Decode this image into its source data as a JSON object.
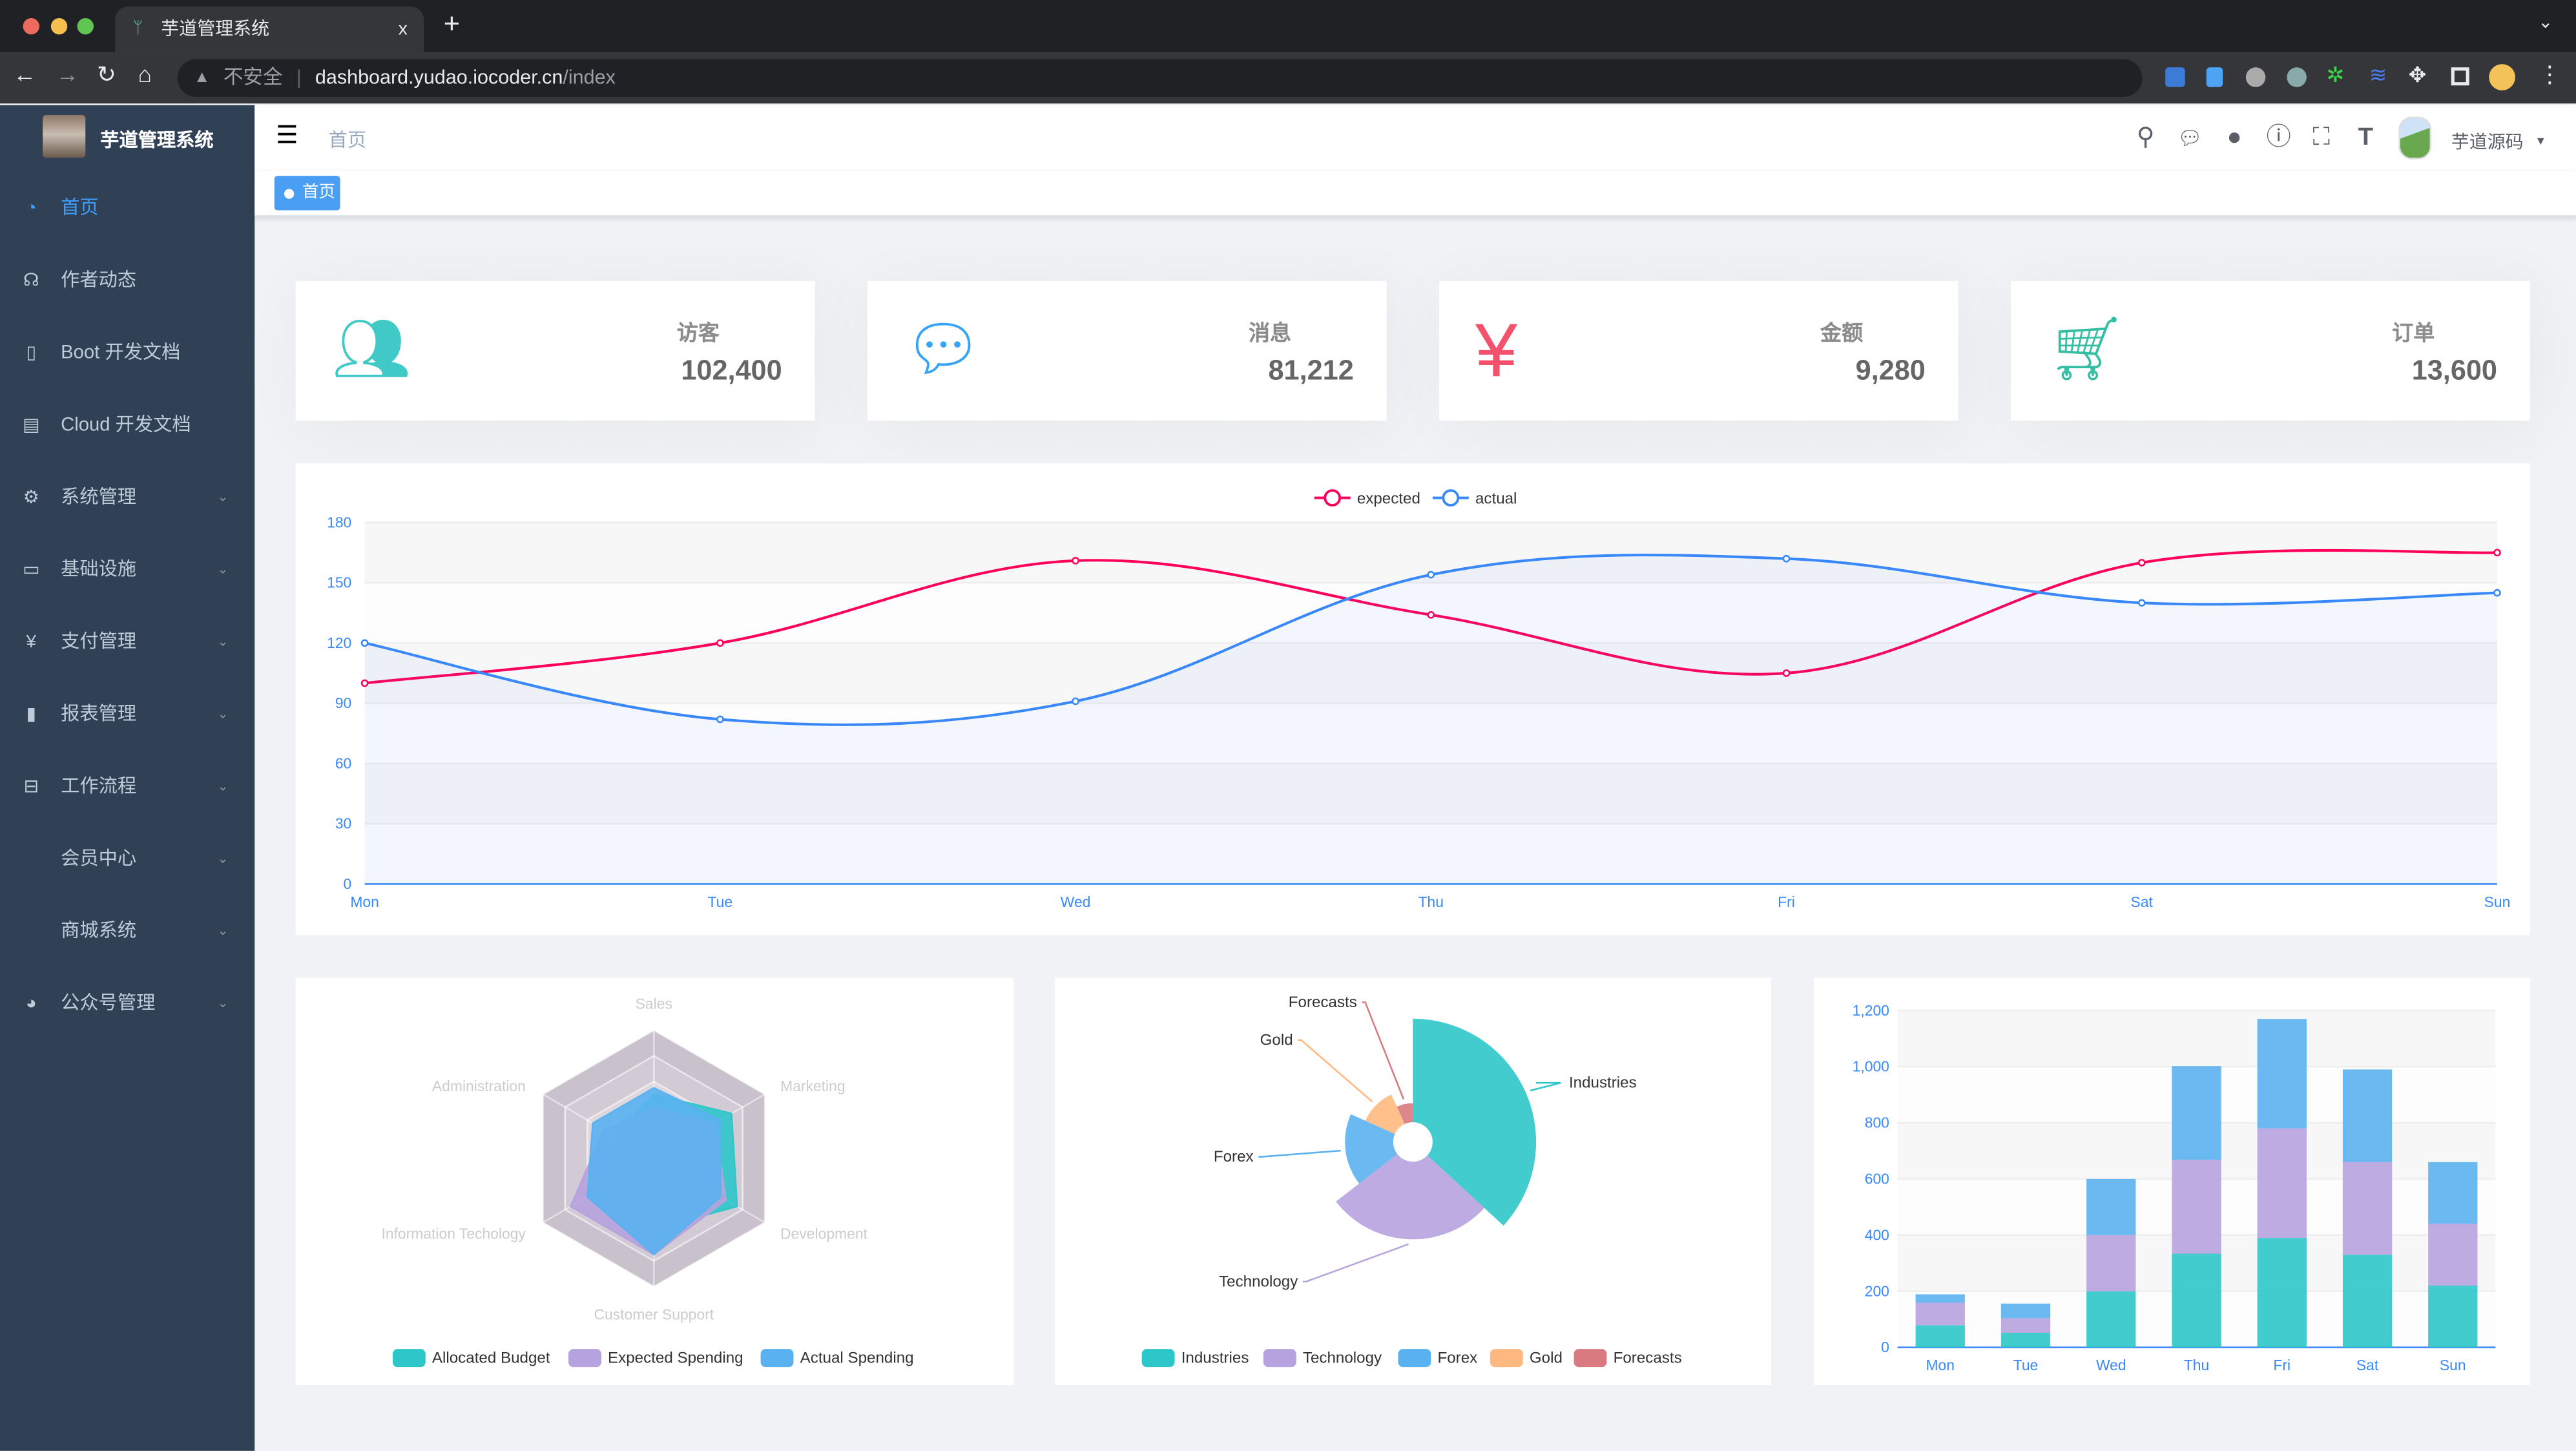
{
  "browser": {
    "tab_title": "芋道管理系统",
    "close": "x",
    "new_tab": "+",
    "security": "不安全",
    "url_host": "dashboard.yudao.iocoder.cn",
    "url_path": "/index"
  },
  "sidebar": {
    "logo_title": "芋道管理系统",
    "items": [
      {
        "label": "首页",
        "icon": "dashboard-icon",
        "active": true,
        "expand": false
      },
      {
        "label": "作者动态",
        "icon": "headset-icon",
        "expand": false
      },
      {
        "label": "Boot 开发文档",
        "icon": "book-icon",
        "expand": false
      },
      {
        "label": "Cloud 开发文档",
        "icon": "document-icon",
        "expand": false
      },
      {
        "label": "系统管理",
        "icon": "gear-icon",
        "expand": true
      },
      {
        "label": "基础设施",
        "icon": "monitor-icon",
        "expand": true
      },
      {
        "label": "支付管理",
        "icon": "yuan-icon",
        "expand": true
      },
      {
        "label": "报表管理",
        "icon": "bar-chart-icon",
        "expand": true
      },
      {
        "label": "工作流程",
        "icon": "toolbox-icon",
        "expand": true
      },
      {
        "label": "会员中心",
        "icon": "",
        "expand": true
      },
      {
        "label": "商城系统",
        "icon": "",
        "expand": true
      },
      {
        "label": "公众号管理",
        "icon": "wechat-icon",
        "expand": true
      }
    ]
  },
  "navbar": {
    "breadcrumb": "首页",
    "user": "芋道源码"
  },
  "tags": {
    "active": "首页"
  },
  "cards": [
    {
      "label": "访客",
      "value": "102,400",
      "icon": "people-icon",
      "color": "#40c9c6"
    },
    {
      "label": "消息",
      "value": "81,212",
      "icon": "message-icon",
      "color": "#36a3f7"
    },
    {
      "label": "金额",
      "value": "9,280",
      "icon": "money-icon",
      "color": "#f4516c"
    },
    {
      "label": "订单",
      "value": "13,600",
      "icon": "shopping-cart-icon",
      "color": "#34bfa3"
    }
  ],
  "chart_data": [
    {
      "type": "line",
      "categories": [
        "Mon",
        "Tue",
        "Wed",
        "Thu",
        "Fri",
        "Sat",
        "Sun"
      ],
      "ylim": [
        0,
        180
      ],
      "yticks": [
        "0",
        "30",
        "60",
        "90",
        "120",
        "150",
        "180"
      ],
      "legend": "top-center",
      "smooth": true,
      "series": [
        {
          "name": "expected",
          "color": "#FF005A",
          "values": [
            100,
            120,
            161,
            134,
            105,
            160,
            165
          ]
        },
        {
          "name": "actual",
          "color": "#3888fa",
          "values": [
            120,
            82,
            91,
            154,
            162,
            140,
            145
          ],
          "area": true
        }
      ]
    },
    {
      "type": "radar",
      "legend": "bottom",
      "indicators": [
        {
          "name": "Sales",
          "max": 10000
        },
        {
          "name": "Administration",
          "max": 20000
        },
        {
          "name": "Information Techology",
          "max": 20000
        },
        {
          "name": "Customer Support",
          "max": 20000
        },
        {
          "name": "Development",
          "max": 20000
        },
        {
          "name": "Marketing",
          "max": 20000
        }
      ],
      "series": [
        {
          "name": "Allocated Budget",
          "color": "#2ec7c9",
          "values": [
            5000,
            7000,
            12000,
            11000,
            15000,
            14000
          ]
        },
        {
          "name": "Expected Spending",
          "color": "#b6a2de",
          "values": [
            4000,
            9000,
            15000,
            15000,
            13000,
            11000
          ]
        },
        {
          "name": "Actual Spending",
          "color": "#5ab1ef",
          "values": [
            5500,
            11000,
            12000,
            15000,
            12000,
            12000
          ]
        }
      ]
    },
    {
      "type": "pie",
      "rose": true,
      "legend": "bottom",
      "slices": [
        {
          "name": "Industries",
          "value": 320,
          "color": "#2ec7c9"
        },
        {
          "name": "Technology",
          "value": 240,
          "color": "#b6a2de"
        },
        {
          "name": "Forex",
          "value": 149,
          "color": "#5ab1ef"
        },
        {
          "name": "Gold",
          "value": 100,
          "color": "#ffb980"
        },
        {
          "name": "Forecasts",
          "value": 59,
          "color": "#d87a80"
        }
      ]
    },
    {
      "type": "bar",
      "stacked": true,
      "categories": [
        "Mon",
        "Tue",
        "Wed",
        "Thu",
        "Fri",
        "Sat",
        "Sun"
      ],
      "ylim": [
        0,
        1200
      ],
      "yticks": [
        "0",
        "200",
        "400",
        "600",
        "800",
        "1,000",
        "1,200"
      ],
      "series": [
        {
          "color": "#2ec7c9",
          "values": [
            79,
            52,
            200,
            334,
            390,
            330,
            220
          ]
        },
        {
          "color": "#b6a2de",
          "values": [
            80,
            52,
            200,
            334,
            390,
            330,
            220
          ]
        },
        {
          "color": "#5ab1ef",
          "values": [
            30,
            52,
            200,
            334,
            390,
            330,
            220
          ]
        }
      ]
    }
  ]
}
